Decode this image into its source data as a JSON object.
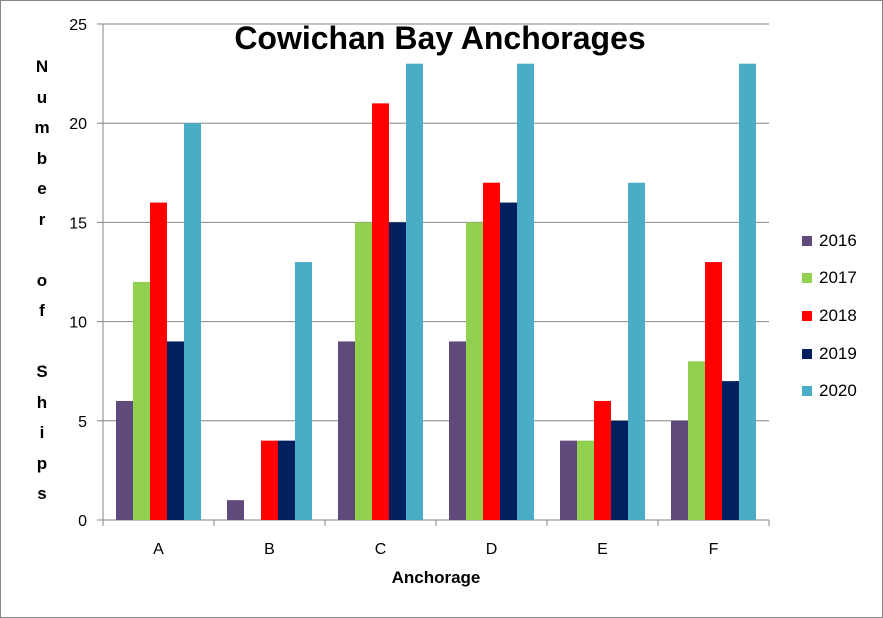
{
  "chart_data": {
    "type": "bar",
    "title": "Cowichan Bay Anchorages",
    "xlabel": "Anchorage",
    "ylabel": "N\nu\nm\nb\ne\nr\n\no\nf\n\nS\nh\ni\np\ns",
    "categories": [
      "A",
      "B",
      "C",
      "D",
      "E",
      "F"
    ],
    "ylim": [
      0,
      25
    ],
    "yticks": [
      0,
      5,
      10,
      15,
      20,
      25
    ],
    "grid": true,
    "legend_position": "right",
    "series": [
      {
        "name": "2016",
        "color": "#604A7B",
        "values": [
          6,
          1,
          9,
          9,
          4,
          5
        ]
      },
      {
        "name": "2017",
        "color": "#92D050",
        "values": [
          12,
          0,
          15,
          15,
          4,
          8
        ]
      },
      {
        "name": "2018",
        "color": "#FF0000",
        "values": [
          16,
          4,
          21,
          17,
          6,
          13
        ]
      },
      {
        "name": "2019",
        "color": "#002060",
        "values": [
          9,
          4,
          15,
          16,
          5,
          7
        ]
      },
      {
        "name": "2020",
        "color": "#4BACC6",
        "values": [
          20,
          13,
          23,
          23,
          17,
          23
        ]
      }
    ]
  }
}
